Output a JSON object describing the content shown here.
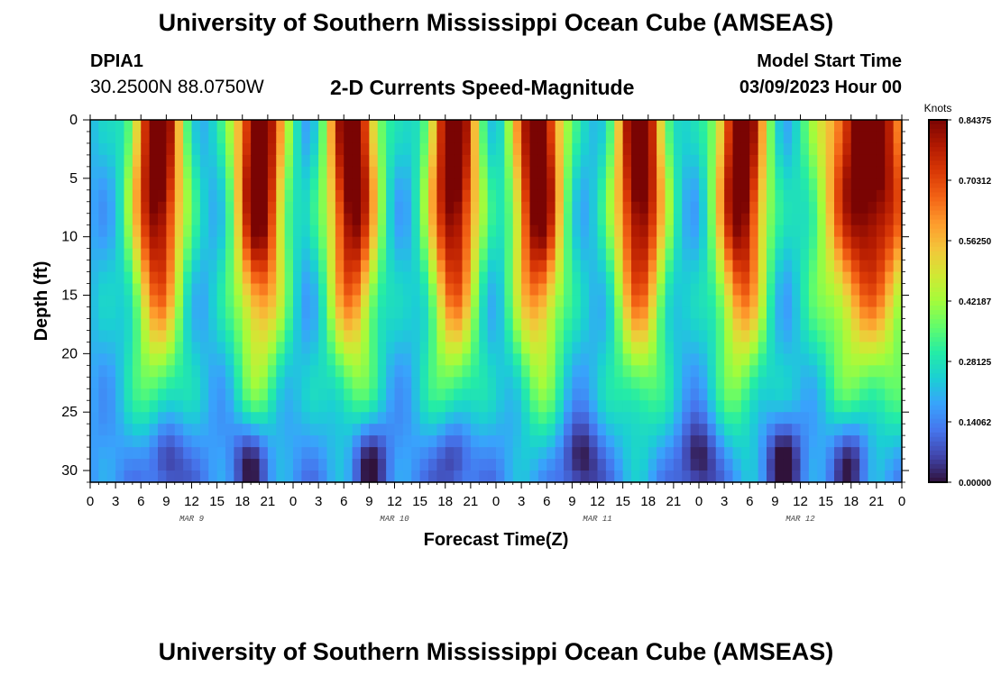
{
  "header": {
    "title": "University of Southern Mississippi Ocean Cube (AMSEAS)",
    "station": "DPIA1",
    "coordinates": "30.2500N  88.0750W",
    "subtitle": "2-D Currents Speed-Magnitude",
    "model_start_label": "Model Start Time",
    "model_start_value": "03/09/2023 Hour 00"
  },
  "footer": {
    "title": "University of Southern Mississippi Ocean Cube (AMSEAS)"
  },
  "chart_data": {
    "type": "heatmap",
    "title": "2-D Currents Speed-Magnitude",
    "xlabel": "Forecast Time(Z)",
    "ylabel": "Depth (ft)",
    "x_range_hours": [
      0,
      96
    ],
    "y_range": [
      0,
      31
    ],
    "y_inverted": true,
    "x_tick_labels": [
      "0",
      "3",
      "6",
      "9",
      "12",
      "15",
      "18",
      "21",
      "0",
      "3",
      "6",
      "9",
      "12",
      "15",
      "18",
      "21",
      "0",
      "3",
      "6",
      "9",
      "12",
      "15",
      "18",
      "21",
      "0",
      "3",
      "6",
      "9",
      "12",
      "15",
      "18",
      "21",
      "0"
    ],
    "y_ticks": [
      0,
      5,
      10,
      15,
      20,
      25,
      30
    ],
    "y_tick_labels": [
      "0",
      "5",
      "10",
      "15",
      "20",
      "25",
      "30"
    ],
    "day_labels": [
      {
        "hour": 12,
        "label": "MAR 9"
      },
      {
        "hour": 36,
        "label": "MAR 10"
      },
      {
        "hour": 60,
        "label": "MAR 11"
      },
      {
        "hour": 84,
        "label": "MAR 12"
      }
    ],
    "colorbar": {
      "label": "Knots",
      "min": 0,
      "max": 0.84375,
      "tick_values": [
        0.0,
        0.140625,
        0.28125,
        0.421875,
        0.5625,
        0.703125,
        0.84375
      ],
      "tick_labels": [
        "0.00000",
        "0.14062",
        "0.28125",
        "0.42187",
        "0.56250",
        "0.70312",
        "0.84375"
      ],
      "colors": [
        "#30123b",
        "#4145ab",
        "#4675ed",
        "#39a2fc",
        "#1bcfd4",
        "#24eca6",
        "#61fc6c",
        "#a4fc3b",
        "#d1e834",
        "#f3c63a",
        "#fe9b2d",
        "#f36315",
        "#d93806",
        "#b11901",
        "#7a0403"
      ]
    },
    "surface": {
      "description": "current speed (knots) by forecast hour (0-96) and depth (0-31 ft)",
      "high_speed_upper_layer_hours": [
        [
          5,
          10
        ],
        [
          16,
          22
        ],
        [
          27,
          34
        ],
        [
          39,
          45
        ],
        [
          51,
          56
        ],
        [
          62,
          67
        ],
        [
          75,
          80
        ],
        [
          87,
          96
        ]
      ],
      "high_speed_peak_hours": [
        8,
        20,
        31,
        43,
        53,
        65,
        77,
        92
      ],
      "near_bottom_minimum_hours": [
        9,
        19,
        33,
        43,
        58,
        72,
        82,
        90
      ]
    }
  }
}
